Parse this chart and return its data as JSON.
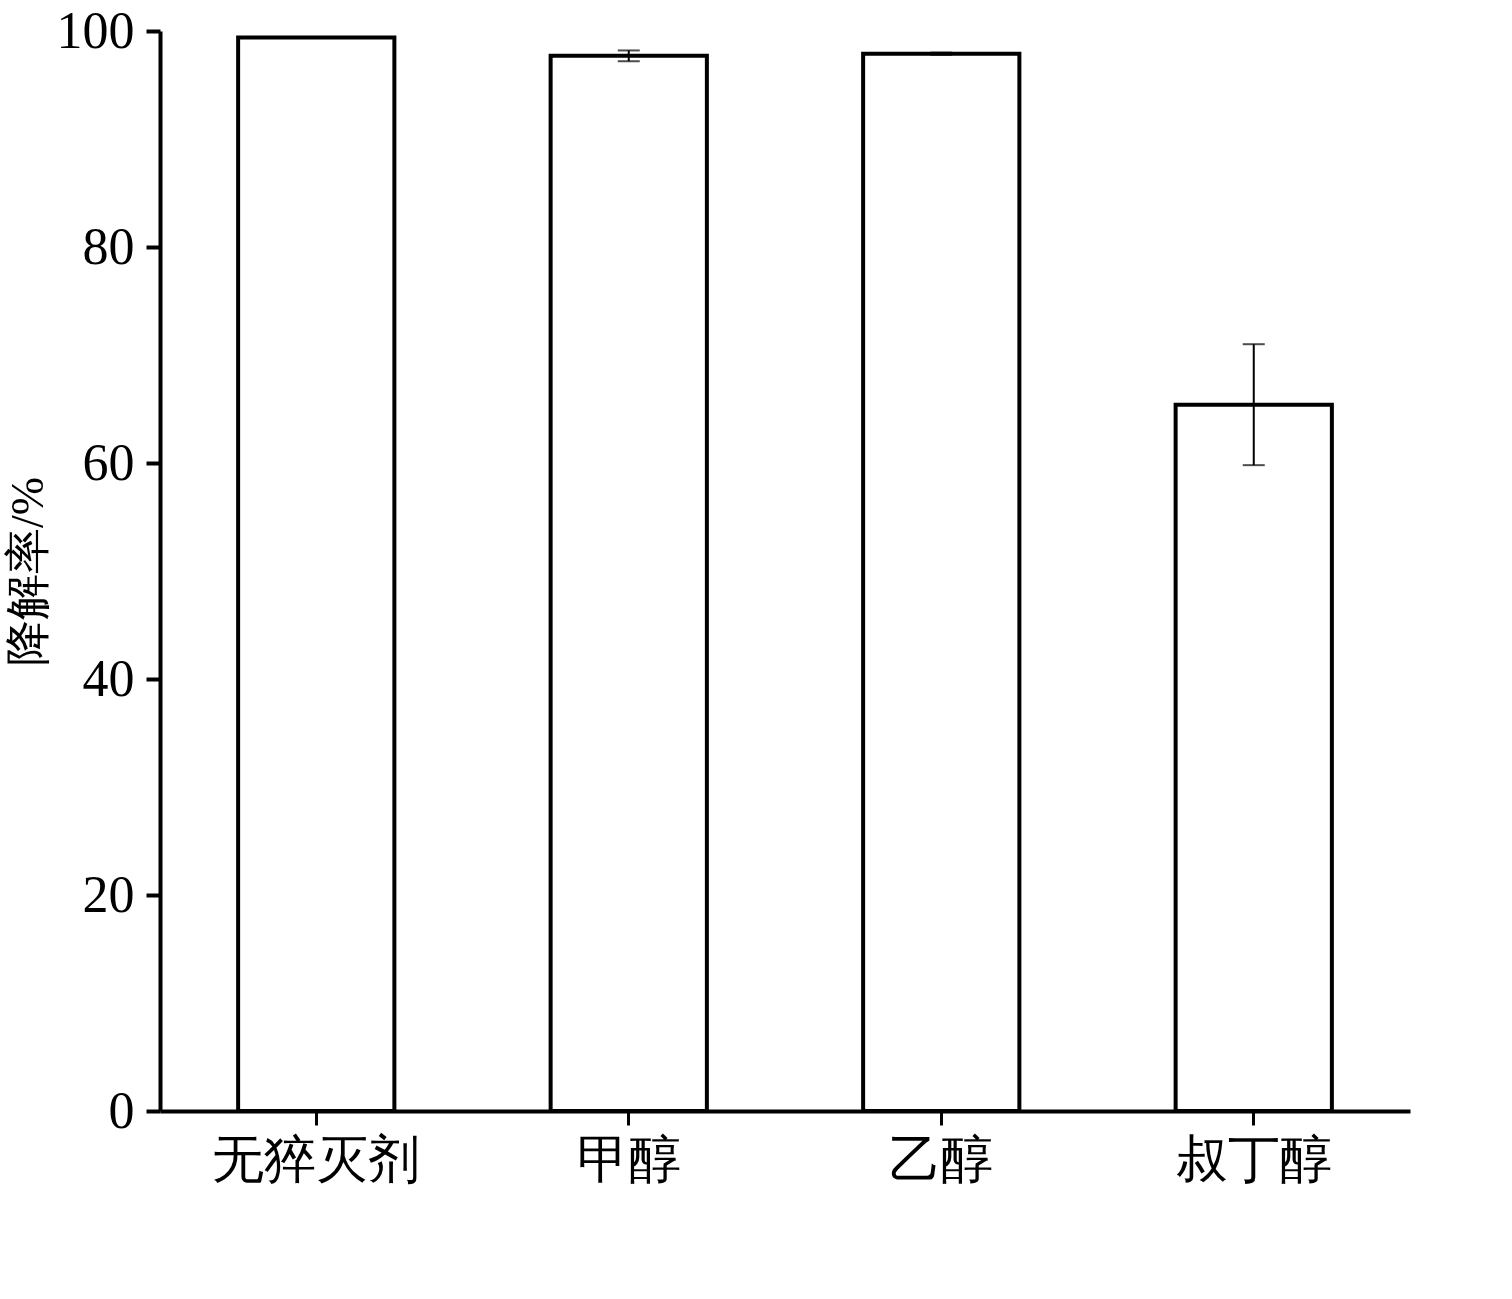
{
  "chart_data": {
    "type": "bar",
    "ylabel": "降解率/%",
    "categories": [
      "无猝灭剂",
      "甲醇",
      "乙醇",
      "叔丁醇"
    ],
    "values": [
      99.4,
      97.7,
      97.9,
      65.4
    ],
    "errors": [
      null,
      0.5,
      0.1,
      5.6
    ],
    "color": "#ffffff",
    "ylim": [
      0,
      100
    ],
    "yticks": [
      0,
      20,
      40,
      60,
      80,
      100
    ],
    "grid": false
  }
}
